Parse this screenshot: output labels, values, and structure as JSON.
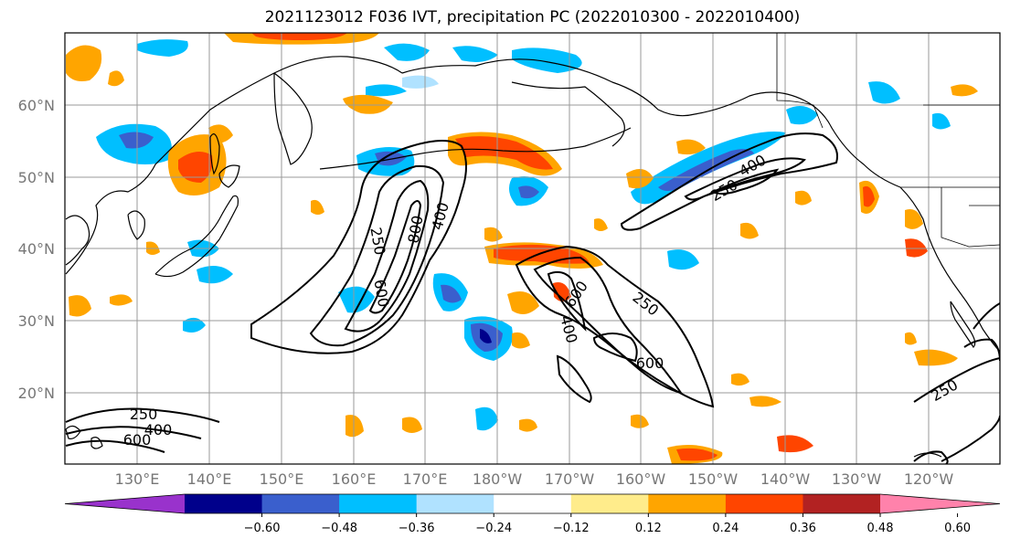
{
  "title": "2021123012 F036 IVT, precipitation PC (2022010300 - 2022010400)",
  "lat_labels": [
    "60°N",
    "50°N",
    "40°N",
    "30°N",
    "20°N"
  ],
  "lon_labels": [
    "130°E",
    "140°E",
    "150°E",
    "160°E",
    "170°E",
    "180°W",
    "170°W",
    "160°W",
    "150°W",
    "140°W",
    "130°W",
    "120°W"
  ],
  "contour_labels": {
    "left_250": "250",
    "left_600": "600",
    "left_800": "800",
    "left_400": "400",
    "mid_600": "600",
    "mid_400": "400",
    "mid_250": "250",
    "mid_600b": "600",
    "ne_250": "250",
    "ne_400": "400",
    "sw_250": "250",
    "sw_400": "400",
    "sw_600": "600",
    "se_250": "250"
  },
  "colorbar": {
    "ticks": [
      "−0.60",
      "−0.48",
      "−0.36",
      "−0.24",
      "−0.12",
      "0.12",
      "0.24",
      "0.36",
      "0.48",
      "0.60"
    ],
    "colors": [
      "#9932cc",
      "#00008b",
      "#3a5fcd",
      "#00bfff",
      "#b0e2ff",
      "#ffffff",
      "#ffec8b",
      "#ffa500",
      "#ff4500",
      "#b22222",
      "#ff82ab"
    ]
  }
}
